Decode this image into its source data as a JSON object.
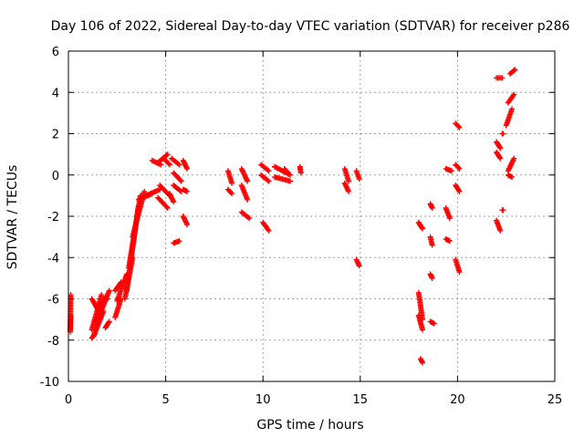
{
  "chart_data": {
    "type": "scatter",
    "title": "Day 106 of 2022, Sidereal Day-to-day VTEC variation (SDTVAR) for receiver p286",
    "xlabel": "GPS time / hours",
    "ylabel": "SDTVAR / TECUs",
    "xlim": [
      0,
      25
    ],
    "ylim": [
      -10,
      6
    ],
    "xticks": [
      0,
      5,
      10,
      15,
      20,
      25
    ],
    "yticks": [
      -10,
      -8,
      -6,
      -4,
      -2,
      0,
      2,
      4,
      6
    ],
    "xtick_labels": [
      "0",
      "5",
      "10",
      "15",
      "20",
      "25"
    ],
    "ytick_labels": [
      "-10",
      "-8",
      "-6",
      "-4",
      "-2",
      "0",
      "2",
      "4",
      "6"
    ],
    "grid": true,
    "marker": "+",
    "color": "#ff0000",
    "series": [
      {
        "name": "p286",
        "segments": [
          {
            "x": [
              0.1,
              0.12
            ],
            "y": [
              -7.6,
              -5.8
            ]
          },
          {
            "x": [
              0.1,
              0.12
            ],
            "y": [
              -7.5,
              -6.8
            ]
          },
          {
            "x": [
              1.2,
              1.35
            ],
            "y": [
              -7.9,
              -7.7
            ]
          },
          {
            "x": [
              1.3,
              1.8
            ],
            "y": [
              -7.8,
              -6.6
            ]
          },
          {
            "x": [
              1.2,
              1.7
            ],
            "y": [
              -7.5,
              -5.8
            ]
          },
          {
            "x": [
              1.2,
              1.5
            ],
            "y": [
              -6.0,
              -6.5
            ]
          },
          {
            "x": [
              1.4,
              1.9
            ],
            "y": [
              -7.2,
              -5.9
            ]
          },
          {
            "x": [
              1.6,
              2.1
            ],
            "y": [
              -6.8,
              -5.6
            ]
          },
          {
            "x": [
              1.6,
              2.0
            ],
            "y": [
              -6.3,
              -6.0
            ]
          },
          {
            "x": [
              1.9,
              2.1
            ],
            "y": [
              -7.4,
              -7.1
            ]
          },
          {
            "x": [
              2.4,
              2.7
            ],
            "y": [
              -6.9,
              -6.0
            ]
          },
          {
            "x": [
              2.4,
              2.7
            ],
            "y": [
              -5.6,
              -5.2
            ]
          },
          {
            "x": [
              2.5,
              3.0
            ],
            "y": [
              -6.1,
              -4.8
            ]
          },
          {
            "x": [
              2.9,
              3.3
            ],
            "y": [
              -6.0,
              -4.0
            ]
          },
          {
            "x": [
              3.0,
              3.6
            ],
            "y": [
              -5.6,
              -1.5
            ]
          },
          {
            "x": [
              3.1,
              3.7
            ],
            "y": [
              -4.5,
              -1.0
            ]
          },
          {
            "x": [
              3.3,
              3.9
            ],
            "y": [
              -3.0,
              -0.8
            ]
          },
          {
            "x": [
              3.6,
              4.3
            ],
            "y": [
              -1.2,
              -0.9
            ]
          },
          {
            "x": [
              4.0,
              4.7
            ],
            "y": [
              -1.0,
              -0.7
            ]
          },
          {
            "x": [
              4.3,
              4.75
            ],
            "y": [
              0.7,
              0.5
            ]
          },
          {
            "x": [
              4.6,
              5.1
            ],
            "y": [
              0.6,
              1.0
            ]
          },
          {
            "x": [
              4.9,
              5.2
            ],
            "y": [
              0.8,
              0.5
            ]
          },
          {
            "x": [
              4.7,
              5.2
            ],
            "y": [
              -0.5,
              -1.0
            ]
          },
          {
            "x": [
              4.6,
              5.1
            ],
            "y": [
              -1.1,
              -1.6
            ]
          },
          {
            "x": [
              5.2,
              5.4
            ],
            "y": [
              -0.9,
              -1.3
            ]
          },
          {
            "x": [
              5.3,
              5.7
            ],
            "y": [
              0.8,
              0.5
            ]
          },
          {
            "x": [
              5.4,
              5.8
            ],
            "y": [
              0.1,
              -0.3
            ]
          },
          {
            "x": [
              5.4,
              5.8
            ],
            "y": [
              -0.5,
              -0.8
            ]
          },
          {
            "x": [
              5.4,
              5.7
            ],
            "y": [
              -3.3,
              -3.2
            ]
          },
          {
            "x": [
              5.9,
              6.1
            ],
            "y": [
              0.7,
              0.3
            ]
          },
          {
            "x": [
              5.9,
              6.1
            ],
            "y": [
              -0.7,
              -0.8
            ]
          },
          {
            "x": [
              5.9,
              6.1
            ],
            "y": [
              -2.0,
              -2.4
            ]
          },
          {
            "x": [
              8.2,
              8.4
            ],
            "y": [
              0.2,
              -0.4
            ]
          },
          {
            "x": [
              8.2,
              8.4
            ],
            "y": [
              -0.7,
              -0.9
            ]
          },
          {
            "x": [
              8.9,
              9.2
            ],
            "y": [
              0.3,
              -0.3
            ]
          },
          {
            "x": [
              8.9,
              9.2
            ],
            "y": [
              -0.5,
              -1.2
            ]
          },
          {
            "x": [
              8.9,
              9.3
            ],
            "y": [
              -1.8,
              -2.1
            ]
          },
          {
            "x": [
              9.9,
              10.3
            ],
            "y": [
              0.5,
              0.2
            ]
          },
          {
            "x": [
              9.9,
              10.3
            ],
            "y": [
              0.0,
              -0.3
            ]
          },
          {
            "x": [
              10.0,
              10.3
            ],
            "y": [
              -2.3,
              -2.7
            ]
          },
          {
            "x": [
              10.6,
              11.4
            ],
            "y": [
              0.4,
              0.0
            ]
          },
          {
            "x": [
              10.6,
              11.4
            ],
            "y": [
              -0.1,
              -0.3
            ]
          },
          {
            "x": [
              11.1,
              11.3
            ],
            "y": [
              0.3,
              0.1
            ]
          },
          {
            "x": [
              11.9,
              11.95
            ],
            "y": [
              0.4,
              0.1
            ]
          },
          {
            "x": [
              14.2,
              14.4
            ],
            "y": [
              0.3,
              -0.3
            ]
          },
          {
            "x": [
              14.2,
              14.4
            ],
            "y": [
              -0.4,
              -0.8
            ]
          },
          {
            "x": [
              14.8,
              14.95
            ],
            "y": [
              0.2,
              -0.2
            ]
          },
          {
            "x": [
              14.8,
              14.95
            ],
            "y": [
              -4.1,
              -4.4
            ]
          },
          {
            "x": [
              18.0,
              18.2
            ],
            "y": [
              -2.3,
              -2.6
            ]
          },
          {
            "x": [
              18.0,
              18.2
            ],
            "y": [
              -5.7,
              -7.0
            ]
          },
          {
            "x": [
              18.0,
              18.2
            ],
            "y": [
              -6.8,
              -7.5
            ]
          },
          {
            "x": [
              18.1,
              18.2
            ],
            "y": [
              -8.9,
              -9.1
            ]
          },
          {
            "x": [
              18.6,
              18.7
            ],
            "y": [
              -1.4,
              -1.6
            ]
          },
          {
            "x": [
              18.6,
              18.7
            ],
            "y": [
              -3.0,
              -3.4
            ]
          },
          {
            "x": [
              18.6,
              18.7
            ],
            "y": [
              -4.8,
              -5.0
            ]
          },
          {
            "x": [
              18.6,
              18.8
            ],
            "y": [
              -7.1,
              -7.2
            ]
          },
          {
            "x": [
              19.4,
              19.6
            ],
            "y": [
              -1.6,
              -2.1
            ]
          },
          {
            "x": [
              19.4,
              19.6
            ],
            "y": [
              -3.1,
              -3.2
            ]
          },
          {
            "x": [
              19.4,
              19.7
            ],
            "y": [
              0.3,
              0.2
            ]
          },
          {
            "x": [
              19.9,
              20.1
            ],
            "y": [
              2.5,
              2.3
            ]
          },
          {
            "x": [
              19.9,
              20.1
            ],
            "y": [
              0.5,
              0.3
            ]
          },
          {
            "x": [
              19.9,
              20.1
            ],
            "y": [
              -0.5,
              -0.8
            ]
          },
          {
            "x": [
              19.9,
              20.1
            ],
            "y": [
              -4.1,
              -4.7
            ]
          },
          {
            "x": [
              22.0,
              22.3
            ],
            "y": [
              4.7,
              4.7
            ]
          },
          {
            "x": [
              22.0,
              22.2
            ],
            "y": [
              1.6,
              1.3
            ]
          },
          {
            "x": [
              22.0,
              22.2
            ],
            "y": [
              1.1,
              0.8
            ]
          },
          {
            "x": [
              22.0,
              22.2
            ],
            "y": [
              -2.2,
              -2.7
            ]
          },
          {
            "x": [
              22.3,
              22.35
            ],
            "y": [
              2.0,
              2.0
            ]
          },
          {
            "x": [
              22.3,
              22.35
            ],
            "y": [
              -1.7,
              -1.7
            ]
          },
          {
            "x": [
              22.5,
              22.8
            ],
            "y": [
              2.4,
              3.2
            ]
          },
          {
            "x": [
              22.6,
              22.9
            ],
            "y": [
              3.5,
              3.9
            ]
          },
          {
            "x": [
              22.7,
              22.95
            ],
            "y": [
              4.9,
              5.1
            ]
          },
          {
            "x": [
              22.6,
              22.9
            ],
            "y": [
              0.2,
              0.8
            ]
          },
          {
            "x": [
              22.6,
              22.8
            ],
            "y": [
              0.0,
              -0.1
            ]
          }
        ]
      }
    ]
  }
}
